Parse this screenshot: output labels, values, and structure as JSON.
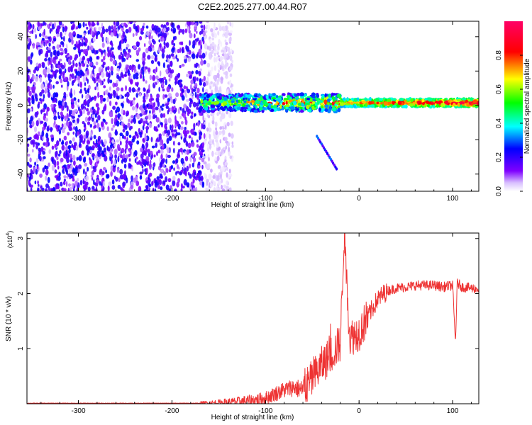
{
  "title": "C2E2.2025.277.00.44.R07",
  "chart_data": [
    {
      "type": "heatmap",
      "xlabel": "Height of straight line (km)",
      "ylabel": "Frequency (Hz)",
      "xlim": [
        -355,
        128
      ],
      "ylim": [
        -50,
        49
      ],
      "xticks": [
        "-300",
        "-200",
        "-100",
        "0",
        "100"
      ],
      "xtick_values": [
        -300,
        -200,
        -100,
        0,
        100
      ],
      "yticks": [
        "40",
        "20",
        "0",
        "-20",
        "-40"
      ],
      "ytick_values": [
        40,
        20,
        0,
        -20,
        -40
      ],
      "colorbar": {
        "label": "Normalized spectral amplitude",
        "range": [
          0,
          1
        ],
        "ticks": [
          "0.0",
          "0.2",
          "0.4",
          "0.6",
          "0.8"
        ],
        "tick_values": [
          0.0,
          0.2,
          0.4,
          0.6,
          0.8
        ],
        "colormap": [
          "#ffffff",
          "#7f00ff",
          "#0000ff",
          "#00ffff",
          "#00ff00",
          "#ffff00",
          "#ff0000",
          "#ff00ff"
        ]
      },
      "features": [
        {
          "name": "broadband noise",
          "x_range": [
            -355,
            -145
          ],
          "freq_range": [
            -50,
            49
          ],
          "amplitude": 0.15
        },
        {
          "name": "signal line",
          "x_range": [
            -170,
            128
          ],
          "freq_center": 1.5,
          "amplitude_start": 0.45,
          "amplitude_end": 0.9
        },
        {
          "name": "descending tail",
          "x_range": [
            -45,
            -24
          ],
          "freq_range": [
            -18,
            -37
          ],
          "amplitude": 0.2
        }
      ]
    },
    {
      "type": "line",
      "xlabel": "Height of straight line (km)",
      "ylabel": "SNR (10 * v/v)",
      "y_multiplier_label": "(x10",
      "y_multiplier_exp": "4",
      "y_multiplier_close": ")",
      "xlim": [
        -355,
        128
      ],
      "ylim": [
        0,
        3.1
      ],
      "xticks": [
        "-300",
        "-200",
        "-100",
        "0",
        "100"
      ],
      "xtick_values": [
        -300,
        -200,
        -100,
        0,
        100
      ],
      "yticks": [
        "1",
        "2",
        "3"
      ],
      "ytick_values": [
        1,
        2,
        3
      ],
      "color": "#ee3333",
      "series": [
        {
          "name": "SNR",
          "x": [
            -355,
            -300,
            -250,
            -200,
            -170,
            -150,
            -130,
            -110,
            -100,
            -90,
            -80,
            -70,
            -60,
            -50,
            -40,
            -30,
            -20,
            -16,
            -10,
            0,
            10,
            20,
            30,
            40,
            50,
            60,
            70,
            80,
            90,
            100,
            103,
            105,
            110,
            120,
            128
          ],
          "y": [
            0.01,
            0.01,
            0.01,
            0.01,
            0.01,
            0.02,
            0.04,
            0.07,
            0.1,
            0.18,
            0.25,
            0.3,
            0.25,
            0.45,
            0.7,
            0.9,
            1.1,
            3.1,
            1.2,
            1.3,
            1.6,
            1.9,
            2.05,
            2.1,
            2.12,
            2.15,
            2.15,
            2.15,
            2.12,
            2.15,
            1.1,
            2.2,
            2.12,
            2.1,
            2.08
          ]
        }
      ]
    }
  ]
}
